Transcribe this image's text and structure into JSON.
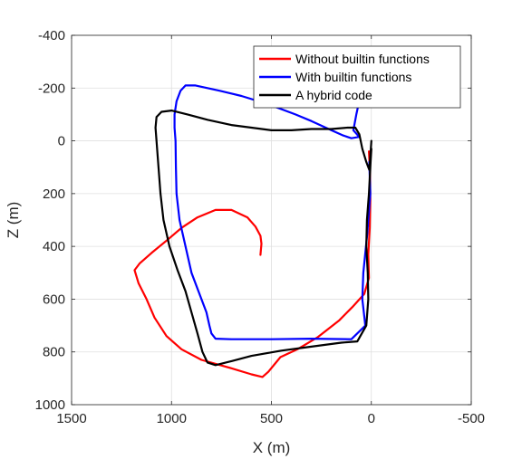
{
  "chart_data": {
    "type": "line",
    "title": "",
    "xlabel": "X (m)",
    "ylabel": "Z (m)",
    "xlim": [
      1500,
      -500
    ],
    "ylim": [
      -400,
      1000
    ],
    "x_reversed": true,
    "y_reversed": true,
    "xticks": [
      1500,
      1000,
      500,
      0,
      -500
    ],
    "yticks": [
      -400,
      -200,
      0,
      200,
      400,
      600,
      800,
      1000
    ],
    "grid": true,
    "legend": "top-right",
    "series": [
      {
        "name": "Without builtin functions",
        "color": "#ff0000",
        "points": [
          [
            555,
            432
          ],
          [
            550,
            390
          ],
          [
            555,
            360
          ],
          [
            580,
            325
          ],
          [
            620,
            290
          ],
          [
            700,
            262
          ],
          [
            780,
            262
          ],
          [
            870,
            290
          ],
          [
            950,
            330
          ],
          [
            1020,
            375
          ],
          [
            1100,
            425
          ],
          [
            1160,
            465
          ],
          [
            1185,
            490
          ],
          [
            1165,
            540
          ],
          [
            1125,
            600
          ],
          [
            1085,
            670
          ],
          [
            1025,
            740
          ],
          [
            950,
            790
          ],
          [
            850,
            830
          ],
          [
            700,
            862
          ],
          [
            600,
            885
          ],
          [
            545,
            895
          ],
          [
            515,
            875
          ],
          [
            455,
            820
          ],
          [
            370,
            790
          ],
          [
            270,
            745
          ],
          [
            160,
            680
          ],
          [
            95,
            630
          ],
          [
            35,
            580
          ],
          [
            12,
            520
          ],
          [
            15,
            430
          ],
          [
            8,
            330
          ],
          [
            5,
            220
          ],
          [
            8,
            100
          ],
          [
            12,
            40
          ]
        ]
      },
      {
        "name": "With builtin functions",
        "color": "#0000ff",
        "points": [
          [
            40,
            -230
          ],
          [
            55,
            -170
          ],
          [
            75,
            -100
          ],
          [
            90,
            -40
          ],
          [
            60,
            -15
          ],
          [
            100,
            -10
          ],
          [
            140,
            -20
          ],
          [
            200,
            -40
          ],
          [
            300,
            -75
          ],
          [
            380,
            -100
          ],
          [
            520,
            -140
          ],
          [
            650,
            -170
          ],
          [
            760,
            -190
          ],
          [
            880,
            -210
          ],
          [
            930,
            -210
          ],
          [
            955,
            -190
          ],
          [
            975,
            -150
          ],
          [
            985,
            -100
          ],
          [
            985,
            -50
          ],
          [
            980,
            0
          ],
          [
            978,
            100
          ],
          [
            975,
            200
          ],
          [
            960,
            300
          ],
          [
            930,
            400
          ],
          [
            900,
            500
          ],
          [
            860,
            580
          ],
          [
            825,
            650
          ],
          [
            810,
            700
          ],
          [
            800,
            730
          ],
          [
            780,
            750
          ],
          [
            700,
            752
          ],
          [
            500,
            752
          ],
          [
            300,
            750
          ],
          [
            100,
            752
          ],
          [
            30,
            700
          ],
          [
            45,
            600
          ],
          [
            40,
            500
          ],
          [
            20,
            350
          ],
          [
            5,
            200
          ],
          [
            10,
            80
          ]
        ]
      },
      {
        "name": "A hybrid code",
        "color": "#000000",
        "points": [
          [
            0,
            0
          ],
          [
            5,
            60
          ],
          [
            10,
            110
          ],
          [
            25,
            80
          ],
          [
            45,
            30
          ],
          [
            60,
            -25
          ],
          [
            80,
            -50
          ],
          [
            120,
            -50
          ],
          [
            200,
            -45
          ],
          [
            300,
            -45
          ],
          [
            400,
            -40
          ],
          [
            500,
            -40
          ],
          [
            600,
            -50
          ],
          [
            700,
            -60
          ],
          [
            820,
            -80
          ],
          [
            920,
            -100
          ],
          [
            1000,
            -115
          ],
          [
            1050,
            -110
          ],
          [
            1075,
            -90
          ],
          [
            1080,
            -50
          ],
          [
            1075,
            0
          ],
          [
            1065,
            100
          ],
          [
            1055,
            200
          ],
          [
            1040,
            300
          ],
          [
            1010,
            400
          ],
          [
            970,
            490
          ],
          [
            930,
            570
          ],
          [
            900,
            650
          ],
          [
            870,
            730
          ],
          [
            845,
            800
          ],
          [
            820,
            840
          ],
          [
            780,
            850
          ],
          [
            700,
            835
          ],
          [
            600,
            815
          ],
          [
            450,
            795
          ],
          [
            300,
            780
          ],
          [
            150,
            765
          ],
          [
            70,
            760
          ],
          [
            25,
            700
          ],
          [
            15,
            600
          ],
          [
            18,
            500
          ],
          [
            25,
            400
          ],
          [
            22,
            300
          ],
          [
            12,
            200
          ],
          [
            5,
            100
          ],
          [
            0,
            30
          ]
        ]
      }
    ]
  }
}
